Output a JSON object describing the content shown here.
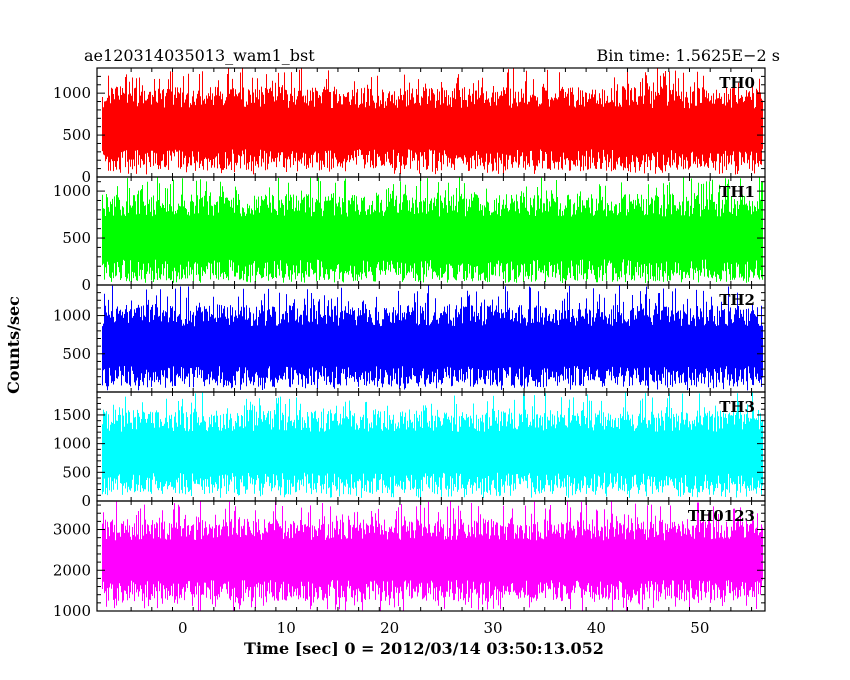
{
  "header": {
    "left": "ae120314035013_wam1_bst",
    "right": "Bin time: 1.5625E−2 s"
  },
  "chart_data": {
    "type": "line",
    "title": "ae120314035013_wam1_bst",
    "subtitle": "Bin time: 1.5625E−2 s",
    "xlabel": "Time [sec] 0 = 2012/03/14 03:50:13.052",
    "ylabel": "Counts/sec",
    "xlim": [
      -8.3,
      56.3
    ],
    "x_ticks": [
      0,
      10,
      20,
      30,
      40,
      50
    ],
    "data_x_range": [
      -7.8,
      56.0
    ],
    "grid": false,
    "legend": "none",
    "panels": [
      {
        "label": "TH0",
        "color": "#ff0000",
        "ylim": [
          0,
          1300
        ],
        "y_ticks": [
          0,
          500,
          1000
        ],
        "typical_range": [
          200,
          950
        ],
        "min_dip": 30,
        "max_spike": 1300
      },
      {
        "label": "TH1",
        "color": "#00ff00",
        "ylim": [
          0,
          1150
        ],
        "y_ticks": [
          0,
          500,
          1000
        ],
        "typical_range": [
          150,
          850
        ],
        "min_dip": 20,
        "max_spike": 1150
      },
      {
        "label": "TH2",
        "color": "#0000ff",
        "ylim": [
          0,
          1400
        ],
        "y_ticks": [
          500,
          1000
        ],
        "typical_range": [
          200,
          1000
        ],
        "min_dip": 20,
        "max_spike": 1400
      },
      {
        "label": "TH3",
        "color": "#00ffff",
        "ylim": [
          0,
          1900
        ],
        "y_ticks": [
          0,
          500,
          1000,
          1500
        ],
        "typical_range": [
          300,
          1400
        ],
        "min_dip": 50,
        "max_spike": 1900
      },
      {
        "label": "TH0123",
        "color": "#ff00ff",
        "ylim": [
          1000,
          3700
        ],
        "y_ticks": [
          1000,
          2000,
          3000
        ],
        "typical_range": [
          1500,
          3000
        ],
        "min_dip": 1000,
        "max_spike": 3700
      }
    ]
  }
}
